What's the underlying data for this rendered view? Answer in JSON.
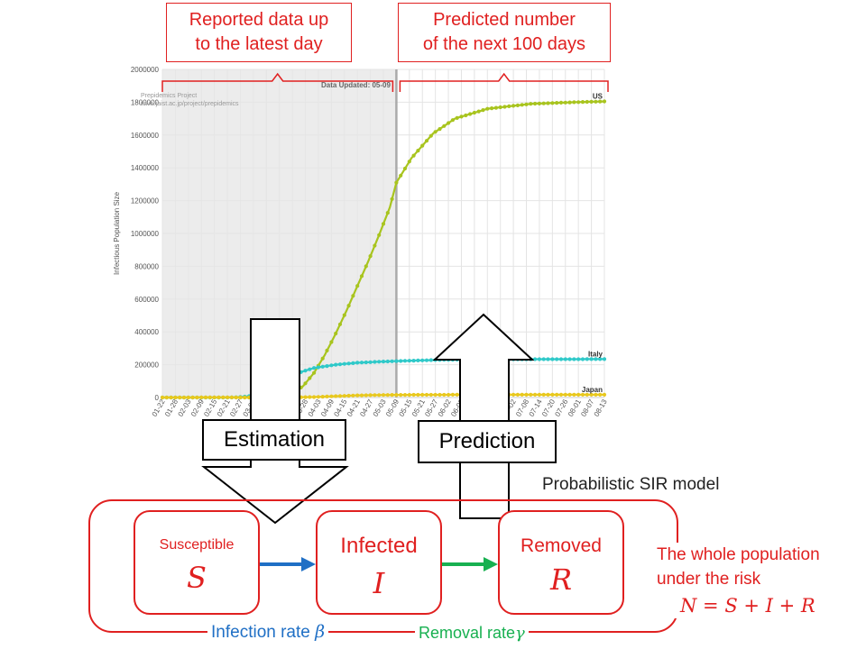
{
  "callouts": {
    "reported": [
      "Reported data up",
      "to the latest day"
    ],
    "predicted": [
      "Predicted number",
      "of the next 100 days"
    ]
  },
  "chart_watermark": [
    "Prepidemics Project",
    "www.jaist.ac.jp/project/prepidemics"
  ],
  "chart_updated": "Data Updated: 05-09",
  "chart_data": {
    "type": "line",
    "ylabel": "Infectious Population Size",
    "ylim": [
      0,
      2000000
    ],
    "yticks": [
      0,
      200000,
      400000,
      600000,
      800000,
      1000000,
      1200000,
      1400000,
      1600000,
      1800000,
      2000000
    ],
    "xtick_labels": [
      "01-22",
      "01-28",
      "02-03",
      "02-09",
      "02-15",
      "02-21",
      "02-27",
      "03-04",
      "03-10",
      "03-16",
      "03-22",
      "03-28",
      "04-03",
      "04-09",
      "04-15",
      "04-21",
      "04-27",
      "05-03",
      "05-09",
      "05-15",
      "05-21",
      "05-27",
      "06-02",
      "06-08",
      "06-14",
      "06-20",
      "06-26",
      "07-02",
      "07-08",
      "07-14",
      "07-20",
      "07-26",
      "08-01",
      "08-07",
      "08-13"
    ],
    "day_span": [
      0,
      204
    ],
    "observed_until_day": 108,
    "series": [
      {
        "name": "US",
        "color": "#a8c41e",
        "points": [
          [
            0,
            0
          ],
          [
            50,
            0
          ],
          [
            55,
            3000
          ],
          [
            60,
            25000
          ],
          [
            65,
            70000
          ],
          [
            70,
            150000
          ],
          [
            75,
            260000
          ],
          [
            80,
            390000
          ],
          [
            85,
            530000
          ],
          [
            90,
            680000
          ],
          [
            95,
            830000
          ],
          [
            100,
            990000
          ],
          [
            105,
            1160000
          ],
          [
            108,
            1310000
          ],
          [
            115,
            1460000
          ],
          [
            125,
            1610000
          ],
          [
            135,
            1700000
          ],
          [
            150,
            1760000
          ],
          [
            170,
            1790000
          ],
          [
            190,
            1800000
          ],
          [
            204,
            1805000
          ]
        ]
      },
      {
        "name": "Italy",
        "color": "#2fc9c9",
        "points": [
          [
            0,
            0
          ],
          [
            30,
            0
          ],
          [
            35,
            2000
          ],
          [
            40,
            8000
          ],
          [
            45,
            30000
          ],
          [
            50,
            65000
          ],
          [
            55,
            100000
          ],
          [
            60,
            135000
          ],
          [
            65,
            160000
          ],
          [
            70,
            180000
          ],
          [
            80,
            200000
          ],
          [
            90,
            212000
          ],
          [
            100,
            218000
          ],
          [
            108,
            222000
          ],
          [
            130,
            230000
          ],
          [
            160,
            233000
          ],
          [
            204,
            234000
          ]
        ]
      },
      {
        "name": "Japan",
        "color": "#e8c81e",
        "points": [
          [
            0,
            0
          ],
          [
            60,
            1000
          ],
          [
            70,
            3000
          ],
          [
            80,
            8000
          ],
          [
            90,
            13000
          ],
          [
            100,
            15000
          ],
          [
            108,
            16000
          ],
          [
            140,
            17000
          ],
          [
            204,
            17000
          ]
        ]
      }
    ]
  },
  "arrows": {
    "estimation": "Estimation",
    "prediction": "Prediction"
  },
  "model_title": "Probabilistic SIR model",
  "states": [
    {
      "label": "Susceptible",
      "symbol": "S"
    },
    {
      "label": "Infected",
      "symbol": "I"
    },
    {
      "label": "Removed",
      "symbol": "R"
    }
  ],
  "rates": {
    "infection": "Infection rate",
    "infection_symbol": "β",
    "removal": "Removal rate",
    "removal_symbol": "γ"
  },
  "population": {
    "line1": "The whole population",
    "line2": "under the risk",
    "formula": "N = S + I + R"
  },
  "colors": {
    "red": "#e02020",
    "blue": "#1f6fc5",
    "green": "#17b050"
  }
}
